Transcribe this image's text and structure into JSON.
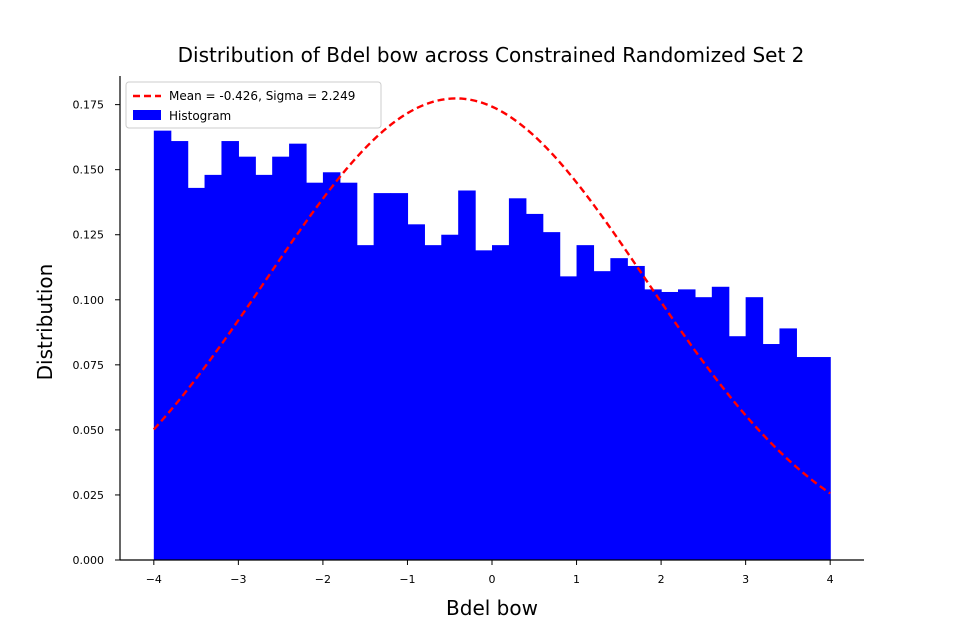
{
  "chart_data": {
    "type": "bar",
    "title": "Distribution of Bdel bow across Constrained Randomized Set 2",
    "xlabel": "Bdel bow",
    "ylabel": "Distribution",
    "xlim": [
      -4.4,
      4.4
    ],
    "ylim": [
      0.0,
      0.186
    ],
    "x_ticks": [
      -4,
      -3,
      -2,
      -1,
      0,
      1,
      2,
      3,
      4
    ],
    "x_tick_labels": [
      "−4",
      "−3",
      "−2",
      "−1",
      "0",
      "1",
      "2",
      "3",
      "4"
    ],
    "y_ticks": [
      0.0,
      0.025,
      0.05,
      0.075,
      0.1,
      0.125,
      0.15,
      0.175
    ],
    "y_tick_labels": [
      "0.000",
      "0.025",
      "0.050",
      "0.075",
      "0.100",
      "0.125",
      "0.150",
      "0.175"
    ],
    "grid": false,
    "legend_position": "top-left",
    "histogram": {
      "name": "Histogram",
      "color": "#0000ff",
      "bin_start": -4.0,
      "bin_width": 0.2,
      "values": [
        0.165,
        0.161,
        0.143,
        0.148,
        0.161,
        0.155,
        0.148,
        0.155,
        0.16,
        0.145,
        0.149,
        0.145,
        0.121,
        0.141,
        0.141,
        0.129,
        0.121,
        0.125,
        0.142,
        0.119,
        0.121,
        0.139,
        0.133,
        0.126,
        0.109,
        0.121,
        0.111,
        0.116,
        0.113,
        0.104,
        0.103,
        0.104,
        0.101,
        0.105,
        0.086,
        0.101,
        0.083,
        0.089,
        0.078,
        0.078
      ]
    },
    "normal_fit": {
      "name": "Mean = -0.426, Sigma = 2.249",
      "color": "#ff0000",
      "line_style": "dashed",
      "mean": -0.426,
      "sigma": 2.249,
      "x_range": [
        -4.0,
        4.0
      ]
    }
  }
}
